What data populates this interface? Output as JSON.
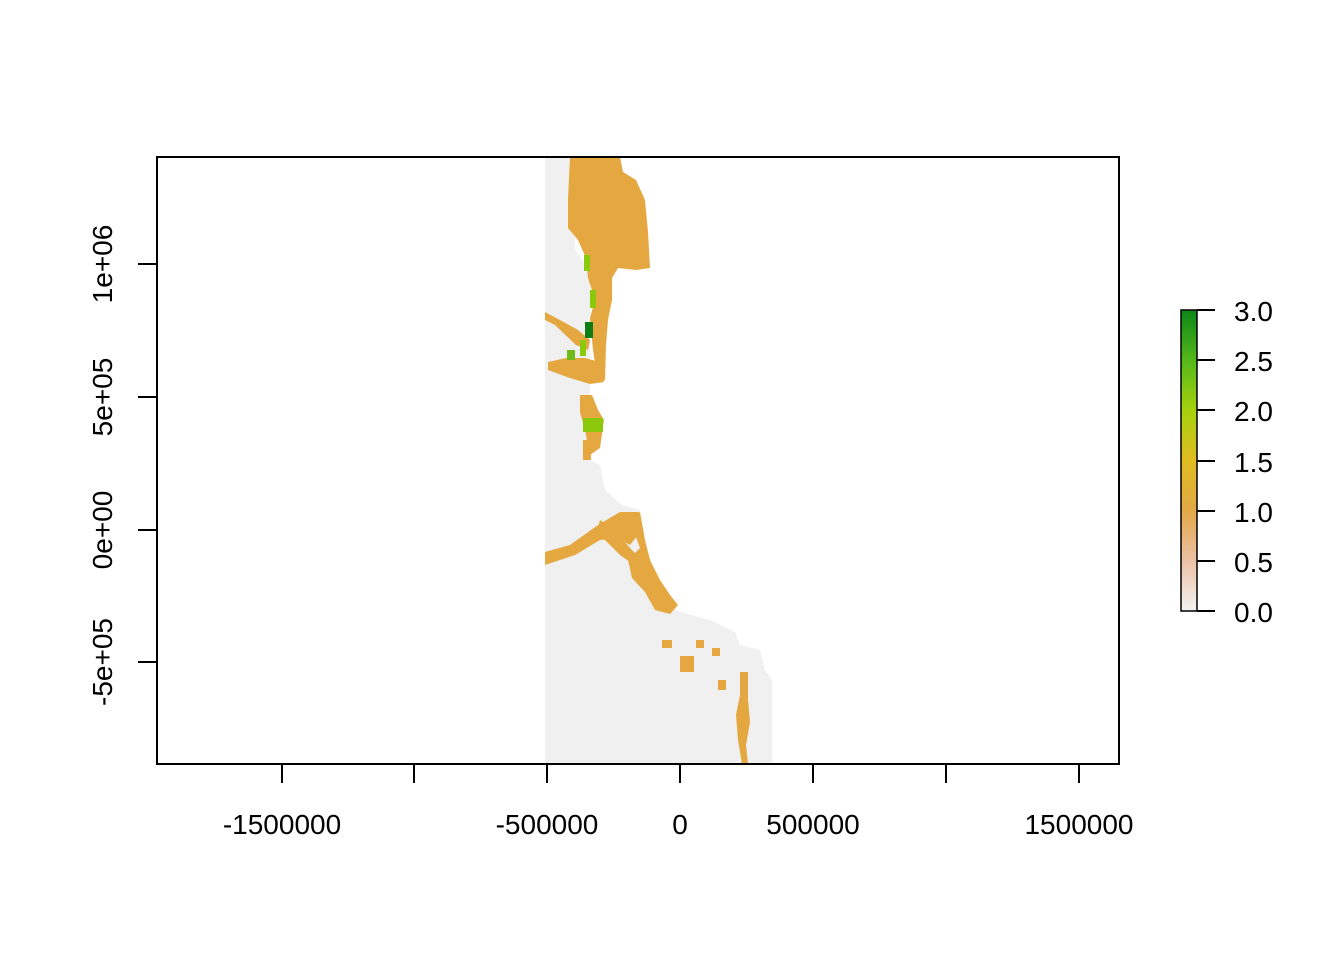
{
  "plot": {
    "type": "raster",
    "x_axis": {
      "range": [
        -1980000,
        1650000
      ],
      "ticks": [
        -1500000,
        -1000000,
        -500000,
        0,
        500000,
        1000000,
        1500000
      ],
      "labels": [
        {
          "value": -1500000,
          "text": "-1500000"
        },
        {
          "value": -500000,
          "text": "-500000"
        },
        {
          "value": 0,
          "text": "0"
        },
        {
          "value": 500000,
          "text": "500000"
        },
        {
          "value": 1500000,
          "text": "1500000"
        }
      ]
    },
    "y_axis": {
      "range": [
        -880000,
        1400000
      ],
      "ticks": [
        {
          "value": 1000000,
          "text": "1e+06"
        },
        {
          "value": 500000,
          "text": "5e+05"
        },
        {
          "value": 0,
          "text": "0e+00"
        },
        {
          "value": -500000,
          "text": "-5e+05"
        }
      ]
    },
    "legend": {
      "min": 0.0,
      "max": 3.0,
      "labels": [
        "3.0",
        "2.5",
        "2.0",
        "1.5",
        "1.0",
        "0.5",
        "0.0"
      ],
      "colors": [
        "#f2f2f2",
        "#ecb176",
        "#e5b43a",
        "#e3c81a",
        "#bcd31a",
        "#7fc913",
        "#0d8a1a"
      ]
    },
    "colors": {
      "background_value_0": "#f0f0f0",
      "value_1": "#e5a840",
      "value_2": "#8ac90b",
      "value_2_5": "#3f9e1e",
      "value_3": "#0e7d14"
    }
  }
}
